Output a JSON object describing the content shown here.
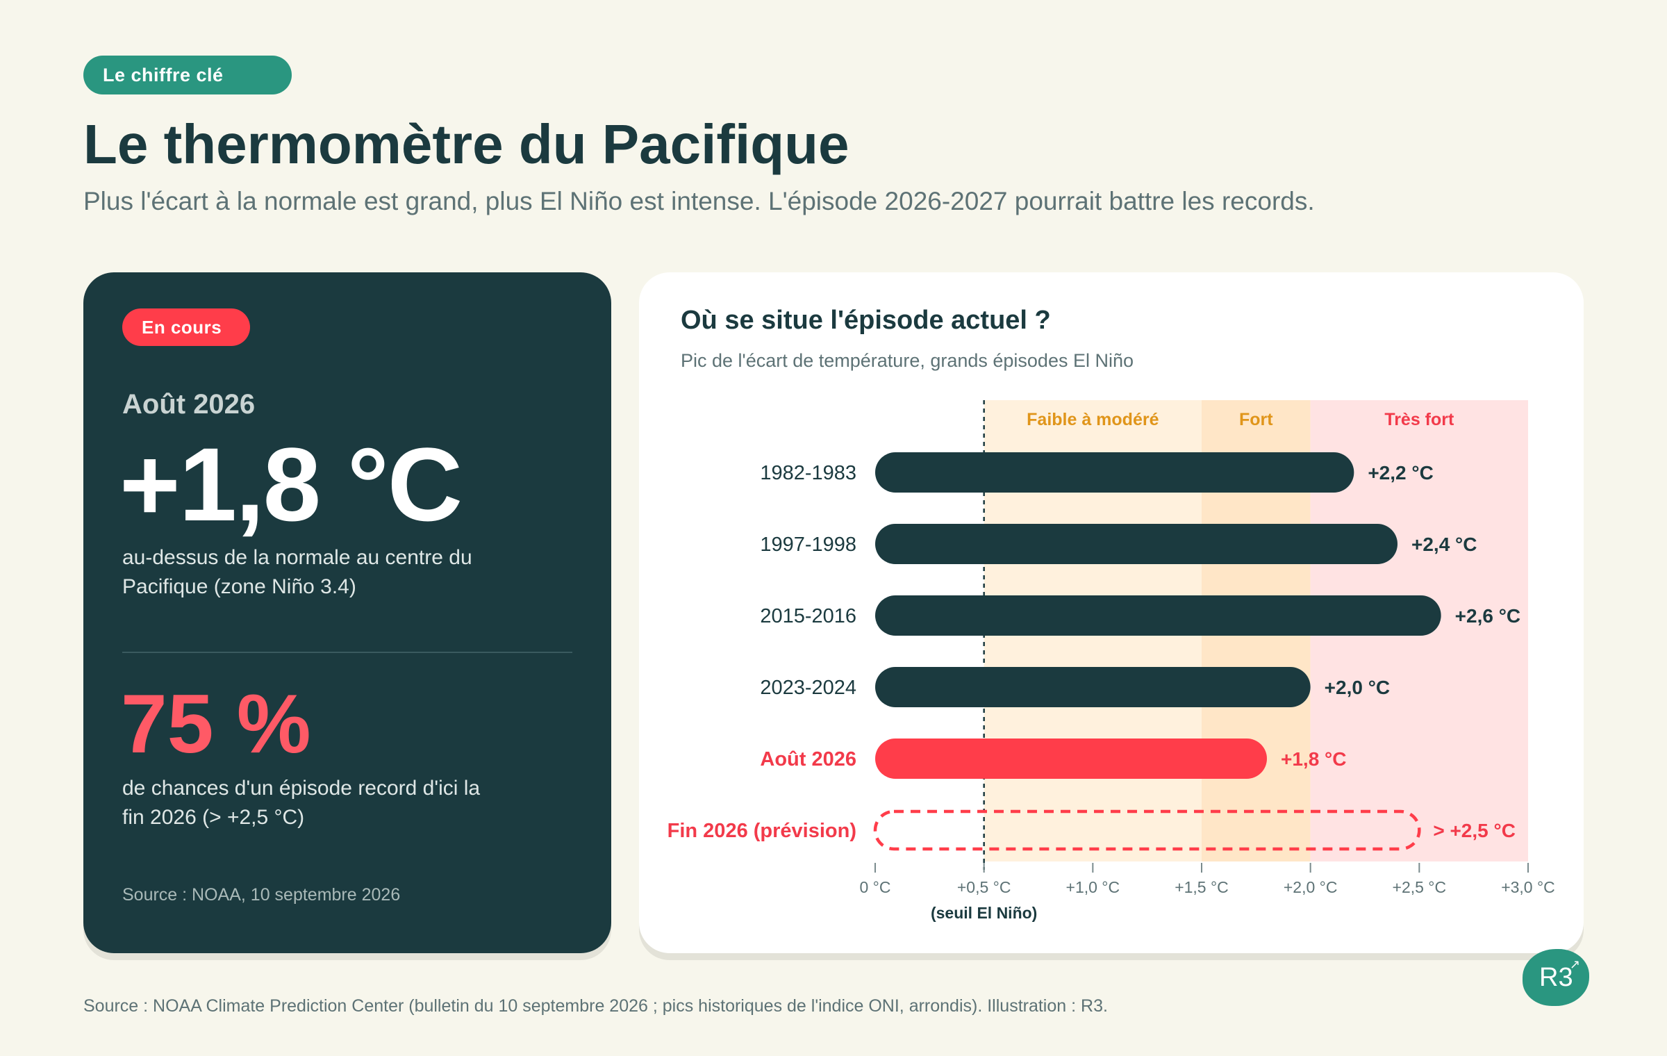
{
  "header": {
    "tag": "Le chiffre clé",
    "title": "Le thermomètre du Pacifique",
    "subtitle": "Plus l'écart à la normale est grand, plus El Niño est intense. L'épisode 2026-2027 pourrait battre les records."
  },
  "kpi": {
    "badge": "En cours",
    "date": "Août 2026",
    "value": "+1,8 °C",
    "description": "au-dessus de la normale au centre du Pacifique (zone Niño 3.4)",
    "probability": "75 %",
    "probability_description": "de chances d'un épisode record d'ici la fin 2026 (> +2,5 °C)",
    "source": "Source : NOAA, 10 septembre 2026"
  },
  "chart_data": {
    "type": "bar",
    "orientation": "horizontal",
    "title": "Où se situe l'épisode actuel ?",
    "subtitle": "Pic de l'écart de température, grands épisodes El Niño",
    "categories": [
      "1982-1983",
      "1997-1998",
      "2015-2016",
      "2023-2024",
      "Août 2026",
      "Fin 2026 (prévision)"
    ],
    "values": [
      2.2,
      2.4,
      2.6,
      2.0,
      1.8,
      2.5
    ],
    "value_labels": [
      "+2,2 °C",
      "+2,4 °C",
      "+2,6 °C",
      "+2,0 °C",
      "+1,8 °C",
      "> +2,5 °C"
    ],
    "styles": [
      "historic",
      "historic",
      "historic",
      "historic",
      "current",
      "forecast"
    ],
    "xlim": [
      0,
      3
    ],
    "ticks": [
      {
        "value": 0,
        "label": "0 °C"
      },
      {
        "value": 0.5,
        "label": "+0,5 °C"
      },
      {
        "value": 1.0,
        "label": "+1,0 °C"
      },
      {
        "value": 1.5,
        "label": "+1,5 °C"
      },
      {
        "value": 2.0,
        "label": "+2,0 °C"
      },
      {
        "value": 2.5,
        "label": "+2,5 °C"
      },
      {
        "value": 3.0,
        "label": "+3,0 °C"
      }
    ],
    "threshold": {
      "value": 0.5,
      "label": "(seuil El Niño)"
    },
    "zones": [
      {
        "name": "Faible à modéré",
        "from": 0.5,
        "to": 1.5,
        "fill": "#fff1dd",
        "text_color": "#e0951a"
      },
      {
        "name": "Fort",
        "from": 1.5,
        "to": 2.0,
        "fill": "#ffe6c7",
        "text_color": "#e0951a"
      },
      {
        "name": "Très fort",
        "from": 2.0,
        "to": 3.0,
        "fill": "#ffe3e3",
        "text_color": "#f23a4a"
      }
    ],
    "colors": {
      "historic": "#1b3a3f",
      "current": "#ff3d4a",
      "forecast": "#ff3d4a"
    },
    "grid": false,
    "legend": "none"
  },
  "footer": {
    "source": "Source : NOAA Climate Prediction Center (bulletin du 10 septembre 2026 ; pics historiques de l'indice ONI, arrondis). Illustration : R3.",
    "logo": "R3"
  }
}
